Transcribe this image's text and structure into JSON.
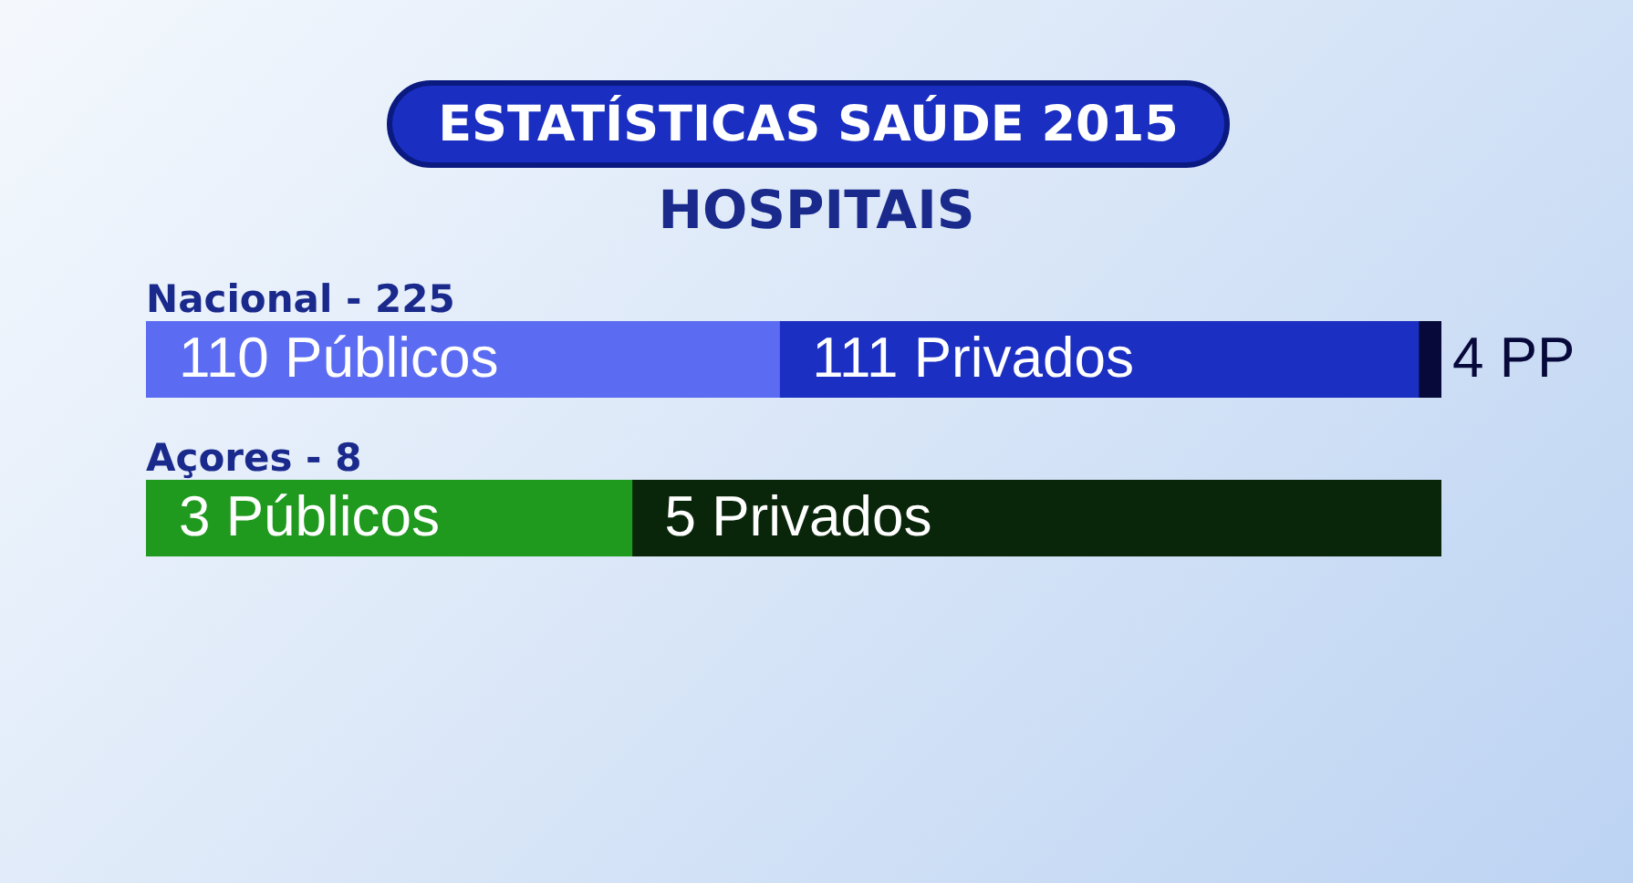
{
  "chart_data": [
    {
      "type": "bar",
      "title": "ESTATÍSTICAS SAÚDE 2015",
      "subtitle": "HOSPITAIS",
      "orientation": "horizontal",
      "stacked": true,
      "xlim": [
        0,
        225
      ],
      "tick_labels": false,
      "categories": [
        "Nacional - 225"
      ],
      "series": [
        {
          "color": "#5b6cf2",
          "values": [
            110
          ],
          "value_labels": [
            "110 Públicos"
          ]
        },
        {
          "color": "#1b2fc2",
          "values": [
            111
          ],
          "value_labels": [
            "111 Privados"
          ]
        },
        {
          "color": "#07093a",
          "values": [
            4
          ],
          "value_labels": [
            "4 PP"
          ]
        }
      ]
    },
    {
      "type": "bar",
      "orientation": "horizontal",
      "stacked": true,
      "xlim": [
        0,
        8
      ],
      "tick_labels": false,
      "categories": [
        "Açores - 8"
      ],
      "series": [
        {
          "color": "#1f9a1f",
          "values": [
            3
          ],
          "value_labels": [
            "3 Públicos"
          ]
        },
        {
          "color": "#0a260a",
          "values": [
            5
          ],
          "value_labels": [
            "5 Privados"
          ]
        }
      ]
    }
  ]
}
